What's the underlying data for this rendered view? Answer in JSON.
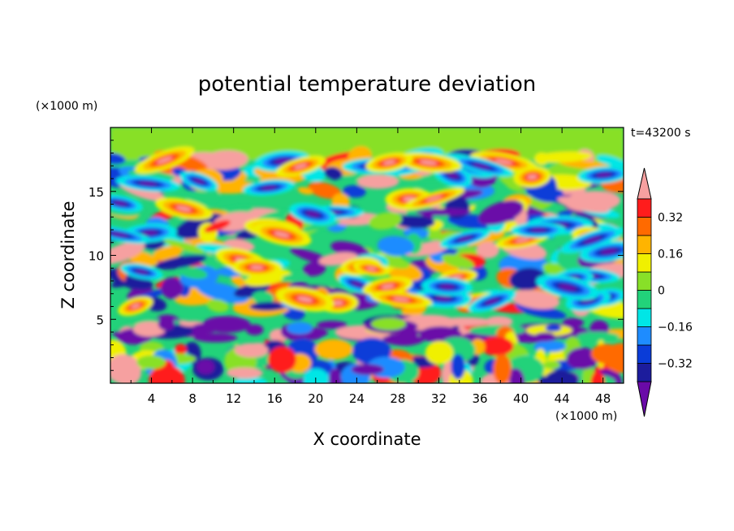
{
  "chart_data": {
    "type": "heatmap",
    "title": "potential temperature deviation",
    "xlabel": "X coordinate",
    "ylabel": "Z coordinate",
    "x_unit_label": "(×1000 m)",
    "y_unit_label": "(×1000 m)",
    "time_label": "t=43200 s",
    "xlim": [
      0,
      50
    ],
    "ylim": [
      0,
      20
    ],
    "x_ticks": [
      4,
      8,
      12,
      16,
      20,
      24,
      28,
      32,
      36,
      40,
      44,
      48
    ],
    "y_ticks": [
      5,
      10,
      15
    ],
    "colorbar": {
      "levels": [
        -0.4,
        -0.32,
        -0.24,
        -0.16,
        -0.08,
        0,
        0.08,
        0.16,
        0.24,
        0.32,
        0.4
      ],
      "tick_labels": [
        {
          "value": 0.32,
          "label": "0.32"
        },
        {
          "value": 0.16,
          "label": "0.16"
        },
        {
          "value": 0,
          "label": "0"
        },
        {
          "value": -0.16,
          "label": "−0.16"
        },
        {
          "value": -0.32,
          "label": "−0.32"
        }
      ],
      "colors": [
        "#6a0aa8",
        "#1c1c9c",
        "#0a3cd8",
        "#1e8cff",
        "#00e6e6",
        "#22d27a",
        "#88e028",
        "#f0f000",
        "#ffb400",
        "#ff6a00",
        "#ff1c1c",
        "#f6a0a0"
      ]
    }
  }
}
